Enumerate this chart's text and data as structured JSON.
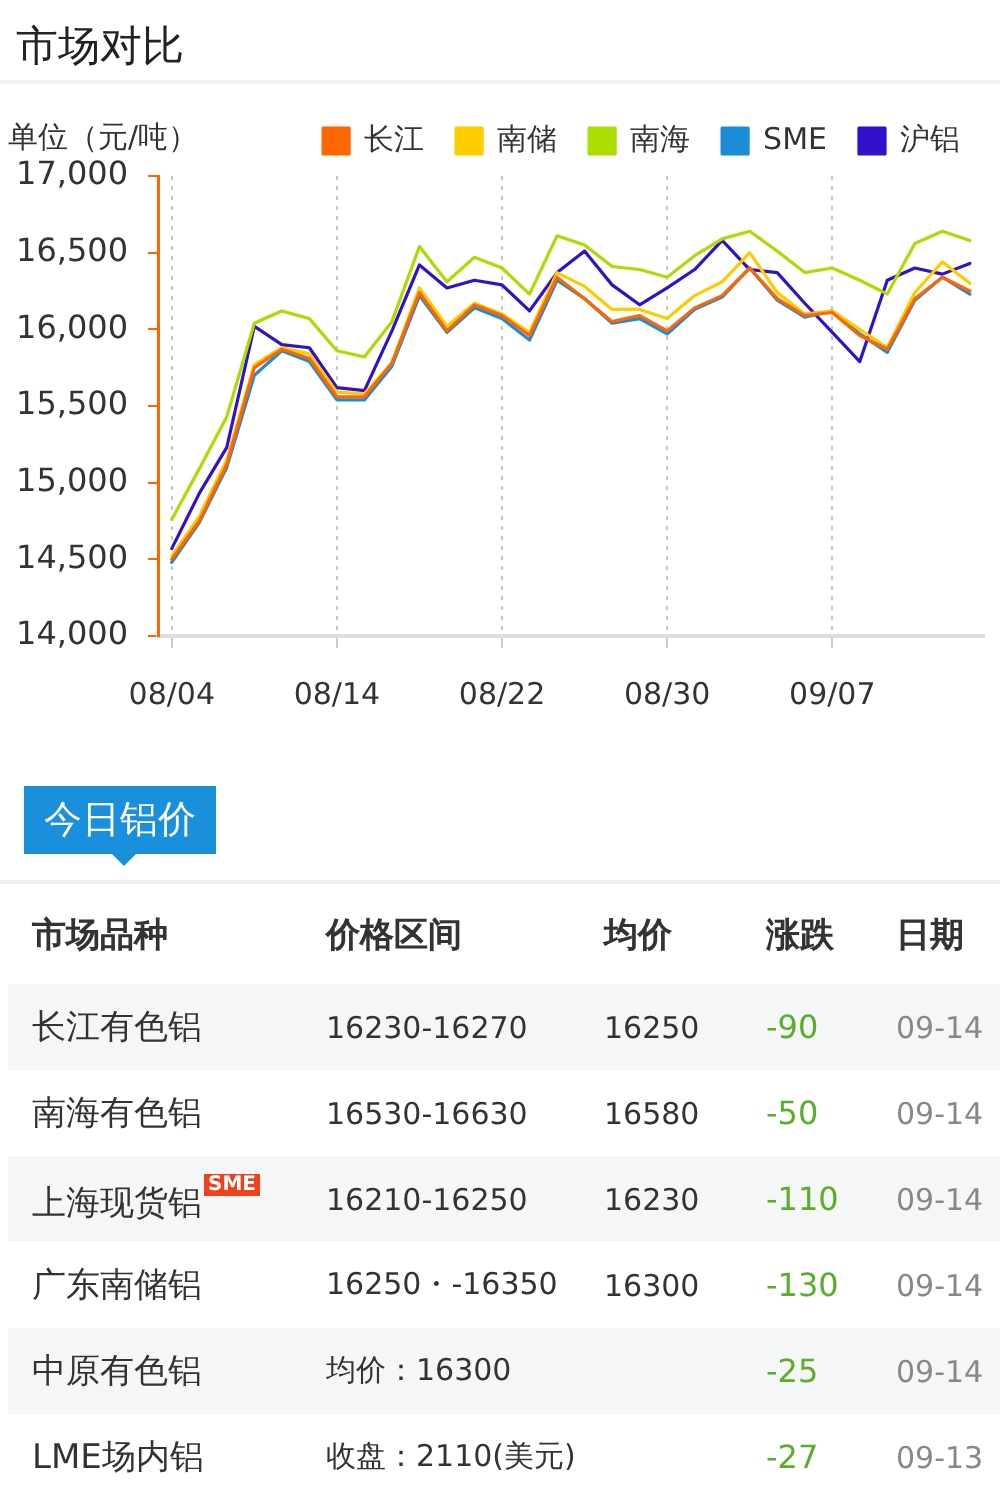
{
  "chart_data": [
    {
      "type": "line",
      "title": "市场对比",
      "ylabel": "单位（元/吨）",
      "categories": [
        "08/04",
        null,
        null,
        null,
        null,
        null,
        "08/14",
        null,
        null,
        null,
        null,
        null,
        "08/22",
        null,
        null,
        null,
        null,
        null,
        "08/30",
        null,
        null,
        null,
        null,
        null,
        "09/07",
        null,
        null,
        null,
        null,
        null
      ],
      "series": [
        {
          "name": "长江",
          "color": "#ff6600",
          "values": [
            14500,
            14750,
            15120,
            15750,
            15870,
            15810,
            15560,
            15560,
            15780,
            16240,
            15990,
            16160,
            16090,
            15960,
            16340,
            16200,
            16050,
            16090,
            15990,
            16140,
            16220,
            16400,
            16200,
            16090,
            16110,
            15960,
            15870,
            16200,
            16340,
            16250
          ]
        },
        {
          "name": "南储",
          "color": "#ffcc00",
          "values": [
            14520,
            14780,
            15150,
            15770,
            15880,
            15840,
            15590,
            15580,
            15780,
            16270,
            16020,
            16170,
            16100,
            15980,
            16370,
            16280,
            16130,
            16130,
            16070,
            16220,
            16310,
            16500,
            16240,
            16100,
            16120,
            16000,
            15880,
            16240,
            16440,
            16300
          ]
        },
        {
          "name": "南海",
          "color": "#aadd00",
          "values": [
            14760,
            15090,
            15430,
            16040,
            16120,
            16070,
            15860,
            15820,
            16050,
            16540,
            16310,
            16470,
            16400,
            16230,
            16610,
            16550,
            16410,
            16390,
            16340,
            16480,
            16590,
            16640,
            16510,
            16370,
            16400,
            16320,
            16230,
            16560,
            16640,
            16580
          ]
        },
        {
          "name": "SME",
          "color": "#1a8cd8",
          "values": [
            14480,
            14740,
            15100,
            15700,
            15860,
            15790,
            15540,
            15540,
            15760,
            16220,
            15980,
            16140,
            16070,
            15930,
            16320,
            16200,
            16040,
            16070,
            15970,
            16130,
            16210,
            16400,
            16190,
            16080,
            16120,
            15970,
            15850,
            16190,
            16340,
            16230
          ]
        },
        {
          "name": "沪铝",
          "color": "#3311cc",
          "values": [
            14570,
            14930,
            15230,
            16020,
            15900,
            15880,
            15620,
            15600,
            15990,
            16420,
            16270,
            16320,
            16290,
            16120,
            16370,
            16510,
            16290,
            16160,
            16270,
            16390,
            16580,
            16390,
            16370,
            16170,
            15980,
            15790,
            16320,
            16400,
            16360,
            16430
          ]
        }
      ],
      "ylim": [
        14000,
        17000
      ],
      "yticks": [
        {
          "value": 14000,
          "label": "14,000"
        },
        {
          "value": 14500,
          "label": "14,500"
        },
        {
          "value": 15000,
          "label": "15,000"
        },
        {
          "value": 15500,
          "label": "15,500"
        },
        {
          "value": 16000,
          "label": "16,000"
        },
        {
          "value": 16500,
          "label": "16,500"
        },
        {
          "value": 17000,
          "label": "17,000"
        }
      ],
      "grid": "x",
      "legend": "top right",
      "marker": "none",
      "line_style": "solid"
    },
    {
      "type": "other",
      "title": "今日铝价",
      "categories": [
        "市场品种",
        "价格区间",
        "均价",
        "涨跌",
        "日期"
      ],
      "annotations": [
        "长江有色铝",
        "16230-16270",
        "16250",
        "-90",
        "09-14",
        "南海有色铝",
        "16530-16630",
        "16580",
        "-50",
        "09-14",
        "上海现货铝$^{SME}$",
        "16210-16250",
        "16230",
        "-110",
        "09-14",
        "广东南储铝",
        "16250・-16350",
        "16300",
        "-130",
        "09-14",
        "中原有色铝",
        "均价：16300",
        null,
        "-25",
        "09-14",
        "LME场内铝",
        "收盘：2110(美元)",
        null,
        "-27",
        "09-13"
      ]
    }
  ]
}
